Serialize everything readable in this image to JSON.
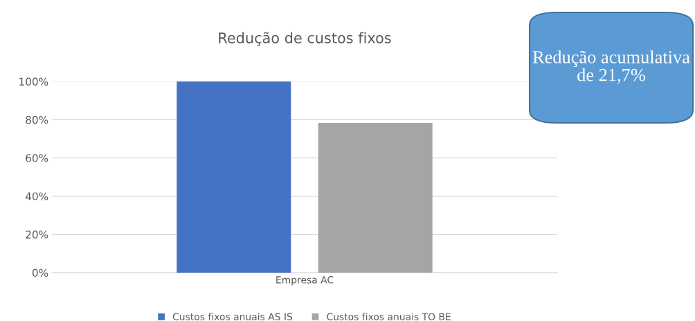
{
  "chart_data": {
    "type": "bar",
    "title": "Redução de custos fixos",
    "categories": [
      "Empresa AC"
    ],
    "series": [
      {
        "name": "Custos fixos anuais AS IS",
        "color": "#4472c4",
        "values": [
          100
        ]
      },
      {
        "name": "Custos fixos anuais TO BE",
        "color": "#a5a5a5",
        "values": [
          78.3
        ]
      }
    ],
    "ylim": [
      0,
      100
    ],
    "yticks": [
      {
        "value": 0,
        "label": "0%"
      },
      {
        "value": 20,
        "label": "20%"
      },
      {
        "value": 40,
        "label": "40%"
      },
      {
        "value": 60,
        "label": "60%"
      },
      {
        "value": 80,
        "label": "80%"
      },
      {
        "value": 100,
        "label": "100%"
      }
    ],
    "grid": "y",
    "legend": "bottom",
    "annotations": [
      "Redução acumulativa de 21,7%"
    ]
  }
}
